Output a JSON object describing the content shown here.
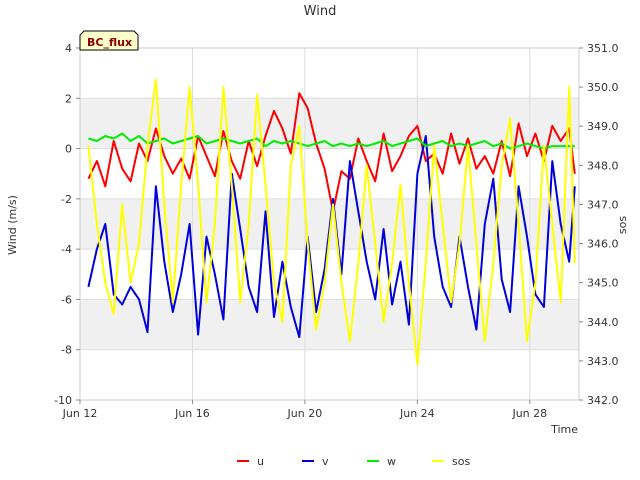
{
  "chart_data": {
    "type": "line",
    "title": "Wind",
    "badge": "BC_flux",
    "xlabel": "Time",
    "ylabel": "Wind (m/s)",
    "y2label": "sos",
    "xlim": [
      12,
      29.75
    ],
    "ylim": [
      -10,
      4
    ],
    "y2lim": [
      342.0,
      351.0
    ],
    "x_ticks": [
      12,
      16,
      20,
      24,
      28
    ],
    "x_tick_labels": [
      "Jun 12",
      "Jun 16",
      "Jun 20",
      "Jun 24",
      "Jun 28"
    ],
    "y_ticks": [
      4,
      2,
      0,
      -2,
      -4,
      -6,
      -8,
      -10
    ],
    "y_tick_labels": [
      "4",
      "2",
      "0",
      "-2",
      "-4",
      "-6",
      "-8",
      "-10"
    ],
    "y2_ticks": [
      351,
      350,
      349,
      348,
      347,
      346,
      345,
      344,
      343,
      342
    ],
    "y2_tick_labels": [
      "351.0",
      "350.0",
      "349.0",
      "348.0",
      "347.0",
      "346.0",
      "345.0",
      "344.0",
      "343.0",
      "342.0"
    ],
    "series": [
      {
        "name": "u",
        "color": "#ff0000",
        "axis": "left",
        "x": [
          12.3,
          12.6,
          12.9,
          13.2,
          13.5,
          13.8,
          14.1,
          14.4,
          14.7,
          15,
          15.3,
          15.6,
          15.9,
          16.2,
          16.5,
          16.8,
          17.1,
          17.4,
          17.7,
          18,
          18.3,
          18.6,
          18.9,
          19.2,
          19.5,
          19.8,
          20.1,
          20.4,
          20.7,
          21,
          21.3,
          21.6,
          21.9,
          22.2,
          22.5,
          22.8,
          23.1,
          23.4,
          23.7,
          24,
          24.3,
          24.6,
          24.9,
          25.2,
          25.5,
          25.8,
          26.1,
          26.4,
          26.7,
          27,
          27.3,
          27.6,
          27.9,
          28.2,
          28.5,
          28.8,
          29.1,
          29.4,
          29.6
        ],
        "y": [
          -1.2,
          -0.5,
          -1.5,
          0.3,
          -0.8,
          -1.3,
          0.2,
          -0.5,
          0.8,
          -0.3,
          -1.0,
          -0.4,
          -1.2,
          0.5,
          -0.3,
          -1.1,
          0.7,
          -0.5,
          -1.2,
          0.3,
          -0.7,
          0.5,
          1.5,
          0.8,
          -0.2,
          2.2,
          1.6,
          0.2,
          -0.8,
          -2.5,
          -0.9,
          -1.2,
          0.4,
          -0.5,
          -1.3,
          0.6,
          -0.9,
          -0.3,
          0.5,
          0.9,
          -0.5,
          -0.2,
          -1.0,
          0.6,
          -0.6,
          0.4,
          -0.8,
          -0.3,
          -1.0,
          0.3,
          -1.1,
          1.0,
          -0.3,
          0.6,
          -0.5,
          0.9,
          0.3,
          0.8,
          -1.0
        ]
      },
      {
        "name": "v",
        "color": "#0000dd",
        "axis": "left",
        "x": [
          12.3,
          12.6,
          12.9,
          13.2,
          13.5,
          13.8,
          14.1,
          14.4,
          14.7,
          15,
          15.3,
          15.6,
          15.9,
          16.2,
          16.5,
          16.8,
          17.1,
          17.4,
          17.7,
          18,
          18.3,
          18.6,
          18.9,
          19.2,
          19.5,
          19.8,
          20.1,
          20.4,
          20.7,
          21,
          21.3,
          21.6,
          21.9,
          22.2,
          22.5,
          22.8,
          23.1,
          23.4,
          23.7,
          24,
          24.3,
          24.6,
          24.9,
          25.2,
          25.5,
          25.8,
          26.1,
          26.4,
          26.7,
          27,
          27.3,
          27.6,
          27.9,
          28.2,
          28.5,
          28.8,
          29.1,
          29.4,
          29.6
        ],
        "y": [
          -5.5,
          -4.0,
          -3.0,
          -5.8,
          -6.2,
          -5.5,
          -6.0,
          -7.3,
          -1.5,
          -4.5,
          -6.5,
          -5.0,
          -3.0,
          -7.4,
          -3.5,
          -5.0,
          -6.8,
          -1.0,
          -3.2,
          -5.5,
          -6.5,
          -2.5,
          -6.7,
          -4.5,
          -6.3,
          -7.5,
          -3.5,
          -6.5,
          -4.8,
          -2.0,
          -5.0,
          -0.5,
          -2.5,
          -4.5,
          -6.0,
          -3.2,
          -6.2,
          -4.5,
          -7.0,
          -1.0,
          0.5,
          -3.5,
          -5.5,
          -6.3,
          -3.5,
          -5.5,
          -7.2,
          -3.0,
          -1.2,
          -5.2,
          -6.5,
          -1.5,
          -3.5,
          -5.8,
          -6.3,
          -0.5,
          -3.0,
          -4.5,
          -1.5
        ]
      },
      {
        "name": "w",
        "color": "#00ee00",
        "axis": "left",
        "x": [
          12.3,
          12.6,
          12.9,
          13.2,
          13.5,
          13.8,
          14.1,
          14.4,
          14.7,
          15,
          15.3,
          15.6,
          15.9,
          16.2,
          16.5,
          16.8,
          17.1,
          17.4,
          17.7,
          18,
          18.3,
          18.6,
          18.9,
          19.2,
          19.5,
          19.8,
          20.1,
          20.4,
          20.7,
          21,
          21.3,
          21.6,
          21.9,
          22.2,
          22.5,
          22.8,
          23.1,
          23.4,
          23.7,
          24,
          24.3,
          24.6,
          24.9,
          25.2,
          25.5,
          25.8,
          26.1,
          26.4,
          26.7,
          27,
          27.3,
          27.6,
          27.9,
          28.2,
          28.5,
          28.8,
          29.1,
          29.4,
          29.6
        ],
        "y": [
          0.4,
          0.3,
          0.5,
          0.4,
          0.6,
          0.3,
          0.5,
          0.2,
          0.3,
          0.4,
          0.2,
          0.3,
          0.4,
          0.5,
          0.2,
          0.3,
          0.4,
          0.3,
          0.2,
          0.3,
          0.4,
          0.1,
          0.3,
          0.2,
          0.3,
          0.2,
          0.1,
          0.2,
          0.3,
          0.1,
          0.2,
          0.1,
          0.2,
          0.1,
          0.2,
          0.3,
          0.1,
          0.2,
          0.3,
          0.4,
          0.1,
          0.2,
          0.3,
          0.1,
          0.2,
          0.1,
          0.2,
          0.3,
          0.1,
          0.2,
          0.0,
          0.1,
          0.2,
          0.1,
          0.0,
          0.1,
          0.1,
          0.1,
          0.1
        ]
      },
      {
        "name": "sos",
        "color": "#ffff00",
        "axis": "right",
        "x": [
          12.3,
          12.6,
          12.9,
          13.2,
          13.5,
          13.8,
          14.1,
          14.4,
          14.7,
          15,
          15.3,
          15.6,
          15.9,
          16.2,
          16.5,
          16.8,
          17.1,
          17.4,
          17.7,
          18,
          18.3,
          18.6,
          18.9,
          19.2,
          19.5,
          19.8,
          20.1,
          20.4,
          20.7,
          21,
          21.3,
          21.6,
          21.9,
          22.2,
          22.5,
          22.8,
          23.1,
          23.4,
          23.7,
          24,
          24.3,
          24.6,
          24.9,
          25.2,
          25.5,
          25.8,
          26.1,
          26.4,
          26.7,
          27,
          27.3,
          27.6,
          27.9,
          28.2,
          28.5,
          28.8,
          29.1,
          29.4,
          29.6
        ],
        "y": [
          348.5,
          346.5,
          345.0,
          344.2,
          347.0,
          345.0,
          346.0,
          348.5,
          350.2,
          347.0,
          344.5,
          347.5,
          350.0,
          347.5,
          344.5,
          346.5,
          350.0,
          347.5,
          344.5,
          346.5,
          349.8,
          347.5,
          345.0,
          344.0,
          348.0,
          349.0,
          346.0,
          343.8,
          345.0,
          347.0,
          345.0,
          343.5,
          345.5,
          348.0,
          346.0,
          344.0,
          345.5,
          347.5,
          345.0,
          342.9,
          345.5,
          348.5,
          346.5,
          344.5,
          346.0,
          348.5,
          346.0,
          343.5,
          345.5,
          348.0,
          349.2,
          346.5,
          343.5,
          345.0,
          348.5,
          346.5,
          344.5,
          350.0,
          345.5
        ]
      }
    ]
  }
}
